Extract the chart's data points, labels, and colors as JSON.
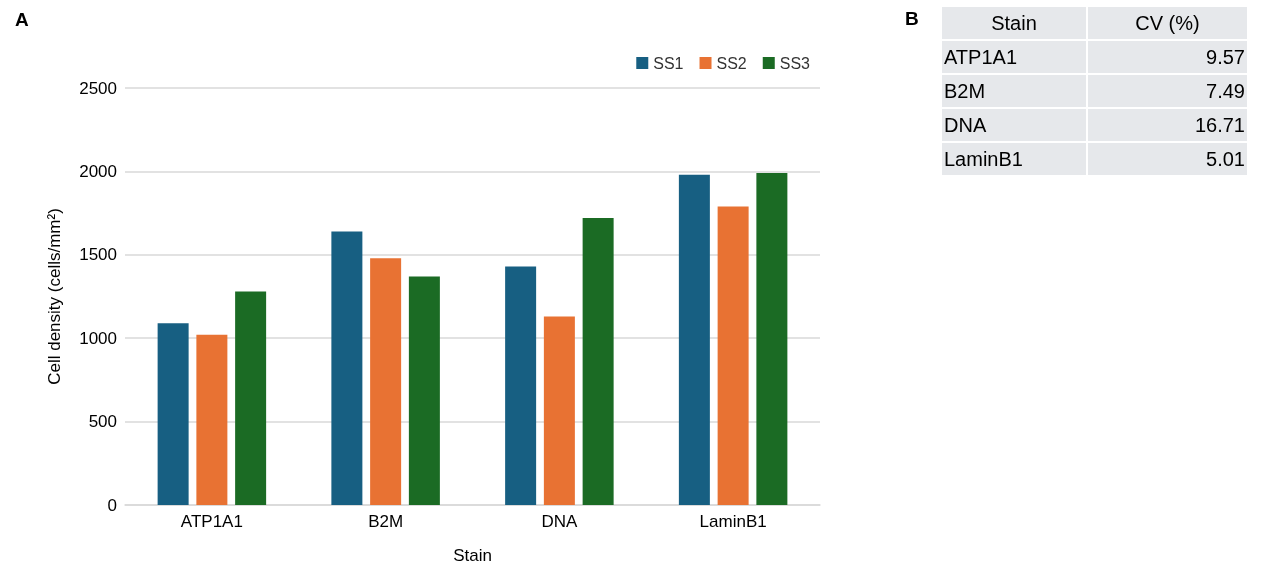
{
  "chart_data": [
    {
      "type": "bar",
      "title": "A",
      "xlabel": "Stain",
      "ylabel": "Cell density (cells/mm²)",
      "categories": [
        "ATP1A1",
        "B2M",
        "DNA",
        "LaminB1"
      ],
      "series": [
        {
          "name": "SS1",
          "color": "#175f82",
          "values": [
            1090,
            1640,
            1430,
            1980
          ]
        },
        {
          "name": "SS2",
          "color": "#e87233",
          "values": [
            1020,
            1480,
            1130,
            1790
          ]
        },
        {
          "name": "SS3",
          "color": "#1b6b24",
          "values": [
            1280,
            1370,
            1720,
            1990
          ]
        }
      ],
      "ylim": [
        0,
        2500
      ],
      "yticks": [
        0,
        500,
        1000,
        1500,
        2000,
        2500
      ],
      "grid": "y",
      "legend": "top right"
    },
    {
      "type": "other",
      "title": "B",
      "xlabel": "Stain",
      "ylabel": "CV (%)",
      "categories": [
        "ATP1A1",
        "B2M",
        "DNA",
        "LaminB1"
      ],
      "values": [
        9.57,
        7.49,
        16.71,
        5.01
      ],
      "data_labels": true
    }
  ]
}
